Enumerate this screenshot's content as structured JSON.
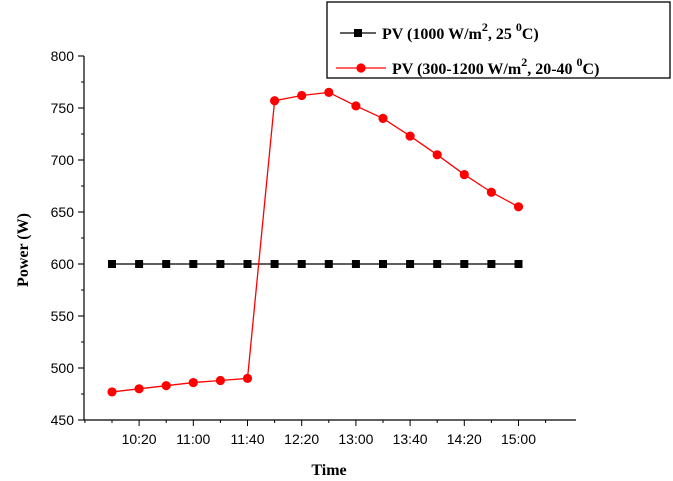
{
  "chart_data": {
    "type": "line",
    "xlabel": "Time",
    "ylabel": "Power (W)",
    "ylim": [
      450,
      800
    ],
    "yticks": [
      450,
      500,
      550,
      600,
      650,
      700,
      750,
      800
    ],
    "x_minutes_from_first_point": [
      0,
      20,
      40,
      60,
      80,
      100,
      120,
      140,
      160,
      180,
      200,
      220,
      240,
      260,
      280,
      300
    ],
    "xtick_labels": [
      "10:20",
      "11:00",
      "11:40",
      "12:20",
      "13:00",
      "13:40",
      "14:20",
      "15:00"
    ],
    "legend_position": "top-right",
    "series": [
      {
        "name": "PV (1000 W/m2, 25 0C)",
        "name_parts": {
          "prefix": "PV (1000 W/m",
          "sup1": "2",
          "mid": ", 25 ",
          "sup2": "0",
          "suffix": "C)"
        },
        "color": "#000000",
        "marker": "square",
        "values": [
          600,
          600,
          600,
          600,
          600,
          600,
          600,
          600,
          600,
          600,
          600,
          600,
          600,
          600,
          600,
          600
        ]
      },
      {
        "name": "PV (300-1200 W/m2, 20-40 0C)",
        "name_parts": {
          "prefix": "PV (300-1200 W/m",
          "sup1": "2",
          "mid": ", 20-40 ",
          "sup2": "0",
          "suffix": "C)"
        },
        "color": "#ff0000",
        "marker": "circle",
        "values": [
          477,
          480,
          483,
          486,
          488,
          490,
          757,
          762,
          765,
          752,
          740,
          723,
          705,
          686,
          669,
          655
        ]
      }
    ]
  }
}
